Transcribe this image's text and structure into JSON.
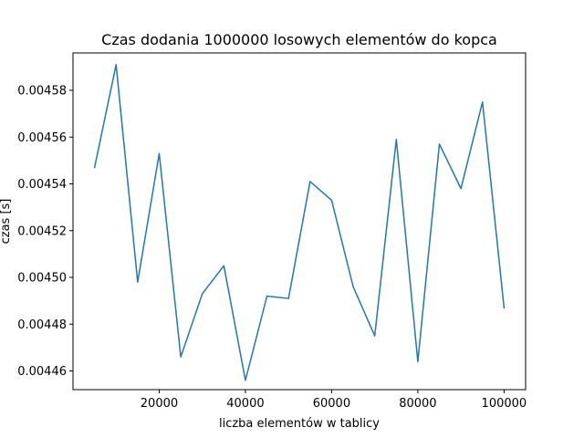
{
  "chart_data": {
    "type": "line",
    "title": "Czas dodania 1000000 losowych elementów do kopca",
    "xlabel": "liczba elementów w tablicy",
    "ylabel": "czas [s]",
    "xlim": [
      0,
      105000
    ],
    "ylim": [
      0.004452,
      0.004596
    ],
    "x_ticks": [
      20000,
      40000,
      60000,
      80000,
      100000
    ],
    "x_tick_labels": [
      "20000",
      "40000",
      "60000",
      "80000",
      "100000"
    ],
    "y_ticks": [
      0.00446,
      0.00448,
      0.0045,
      0.00452,
      0.00454,
      0.00456,
      0.00458
    ],
    "y_tick_labels": [
      "0.00446",
      "0.00448",
      "0.00450",
      "0.00452",
      "0.00454",
      "0.00456",
      "0.00458"
    ],
    "grid": false,
    "series": [
      {
        "color": "#1f77b4",
        "x": [
          5000,
          10000,
          15000,
          20000,
          25000,
          30000,
          35000,
          40000,
          45000,
          50000,
          55000,
          60000,
          65000,
          70000,
          75000,
          80000,
          85000,
          90000,
          95000,
          100000
        ],
        "y": [
          0.004547,
          0.004591,
          0.004498,
          0.004553,
          0.004466,
          0.004493,
          0.004505,
          0.004456,
          0.004492,
          0.004491,
          0.004541,
          0.004533,
          0.004496,
          0.004475,
          0.004559,
          0.004464,
          0.004557,
          0.004538,
          0.004575,
          0.004487
        ]
      }
    ]
  }
}
